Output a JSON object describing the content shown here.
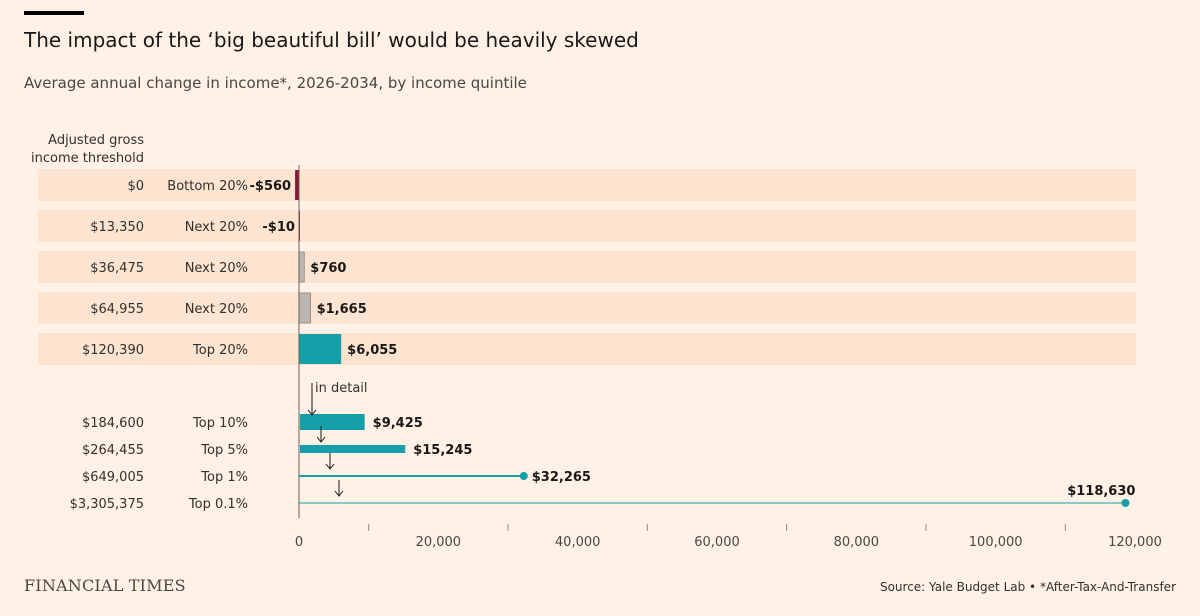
{
  "title": "The impact of the ‘big beautiful bill’ would be heavily skewed",
  "subtitle": "Average annual change in income*, 2026-2034, by income quintile",
  "threshold_header": [
    "Adjusted gross",
    "income threshold"
  ],
  "annotation": "in detail",
  "footer": {
    "logo": "FINANCIAL TIMES",
    "source": "Source: Yale Budget Lab • *After-Tax-And-Transfer"
  },
  "colors": {
    "background": "#fff1e5",
    "band": "#fde4d0",
    "negative": "#8a1538",
    "quintile_gray": "#bdb5af",
    "teal": "#159fa8"
  },
  "chart_data": {
    "type": "bar",
    "x_axis": {
      "min": 0,
      "max": 120000,
      "major_ticks": [
        0,
        20000,
        40000,
        60000,
        80000,
        100000,
        120000
      ],
      "tick_labels": [
        "0",
        "20,000",
        "40,000",
        "60,000",
        "80,000",
        "100,000",
        "120,000"
      ],
      "minor_ticks": [
        10000,
        30000,
        50000,
        70000,
        90000,
        110000
      ]
    },
    "quintiles": [
      {
        "threshold": "$0",
        "group": "Bottom 20%",
        "value": -560,
        "label": "-$560",
        "color": "#8a1538"
      },
      {
        "threshold": "$13,350",
        "group": "Next 20%",
        "value": -10,
        "label": "-$10",
        "color": "#8a1538"
      },
      {
        "threshold": "$36,475",
        "group": "Next 20%",
        "value": 760,
        "label": "$760",
        "color": "#bdb5af"
      },
      {
        "threshold": "$64,955",
        "group": "Next 20%",
        "value": 1665,
        "label": "$1,665",
        "color": "#bdb5af"
      },
      {
        "threshold": "$120,390",
        "group": "Top 20%",
        "value": 6055,
        "label": "$6,055",
        "color": "#159fa8"
      }
    ],
    "detail": [
      {
        "threshold": "$184,600",
        "group": "Top 10%",
        "value": 9425,
        "label": "$9,425",
        "style": "thick"
      },
      {
        "threshold": "$264,455",
        "group": "Top 5%",
        "value": 15245,
        "label": "$15,245",
        "style": "medium"
      },
      {
        "threshold": "$649,005",
        "group": "Top 1%",
        "value": 32265,
        "label": "$32,265",
        "style": "line"
      },
      {
        "threshold": "$3,305,375",
        "group": "Top 0.1%",
        "value": 118630,
        "label": "$118,630",
        "style": "thin"
      }
    ]
  }
}
